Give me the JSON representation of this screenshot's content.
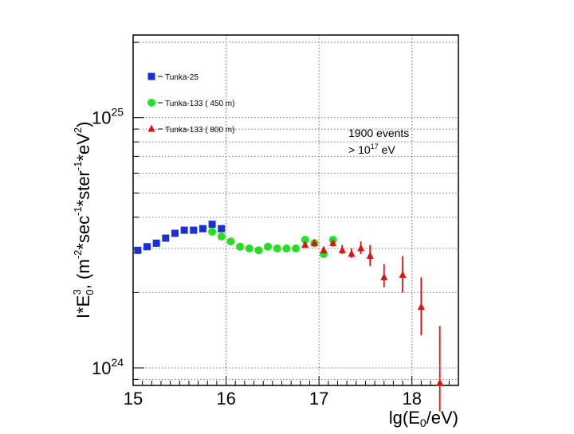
{
  "chart_data": {
    "type": "scatter",
    "title": "",
    "xlabel_parts": [
      "lg(E",
      "0",
      "/eV)"
    ],
    "ylabel_parts": [
      "I*E",
      "0",
      "3",
      ", (m",
      "-2",
      "*sec",
      "-1",
      "*ster",
      "-1",
      "*eV",
      "2",
      ")"
    ],
    "xscale": "linear",
    "yscale": "log",
    "xlim": [
      15.0,
      18.5
    ],
    "ylim_log10": [
      23.93,
      25.33
    ],
    "grid": true,
    "x_ticks": [
      {
        "value": 15,
        "label": "15"
      },
      {
        "value": 16,
        "label": "16"
      },
      {
        "value": 17,
        "label": "17"
      },
      {
        "value": 18,
        "label": "18"
      }
    ],
    "y_ticks": [
      {
        "log_value": 25,
        "base": "10",
        "exp": "25"
      },
      {
        "log_value": 24,
        "base": "10",
        "exp": "24"
      }
    ],
    "annotation": {
      "line1": "1900 events",
      "line2_parts": [
        "> 10",
        "17",
        " eV"
      ]
    },
    "legend_position": "top-left",
    "series": [
      {
        "name": "Tunka-25",
        "marker": "square",
        "color": "#1a2fd6",
        "points": [
          {
            "x": 15.05,
            "y": 2.95e+24
          },
          {
            "x": 15.15,
            "y": 3.05e+24
          },
          {
            "x": 15.25,
            "y": 3.15e+24
          },
          {
            "x": 15.35,
            "y": 3.3e+24
          },
          {
            "x": 15.45,
            "y": 3.45e+24
          },
          {
            "x": 15.55,
            "y": 3.55e+24
          },
          {
            "x": 15.65,
            "y": 3.55e+24
          },
          {
            "x": 15.75,
            "y": 3.6e+24
          },
          {
            "x": 15.85,
            "y": 3.75e+24
          },
          {
            "x": 15.95,
            "y": 3.6e+24
          }
        ]
      },
      {
        "name": "Tunka-133 ( 450 m)",
        "marker": "circle",
        "color": "#22e022",
        "points": [
          {
            "x": 15.85,
            "y": 3.5e+24
          },
          {
            "x": 15.95,
            "y": 3.35e+24
          },
          {
            "x": 16.05,
            "y": 3.2e+24
          },
          {
            "x": 16.15,
            "y": 3.05e+24
          },
          {
            "x": 16.25,
            "y": 3e+24
          },
          {
            "x": 16.35,
            "y": 2.95e+24
          },
          {
            "x": 16.45,
            "y": 3.05e+24
          },
          {
            "x": 16.55,
            "y": 3e+24
          },
          {
            "x": 16.65,
            "y": 3e+24
          },
          {
            "x": 16.75,
            "y": 3e+24
          },
          {
            "x": 16.85,
            "y": 3.25e+24
          },
          {
            "x": 16.95,
            "y": 3.15e+24
          },
          {
            "x": 17.05,
            "y": 2.85e+24
          },
          {
            "x": 17.15,
            "y": 3.25e+24
          }
        ]
      },
      {
        "name": "Tunka-133 ( 800 m)",
        "marker": "triangle",
        "color": "#dd1111",
        "points": [
          {
            "x": 16.85,
            "y": 3.1e+24,
            "err_lo": 5e+22,
            "err_hi": 5e+22
          },
          {
            "x": 16.95,
            "y": 3.15e+24,
            "err_lo": 5e+22,
            "err_hi": 5e+22
          },
          {
            "x": 17.05,
            "y": 2.95e+24,
            "err_lo": 1e+23,
            "err_hi": 1e+23
          },
          {
            "x": 17.15,
            "y": 3.15e+24,
            "err_lo": 1e+23,
            "err_hi": 1e+23
          },
          {
            "x": 17.25,
            "y": 2.95e+24,
            "err_lo": 1e+23,
            "err_hi": 1.5e+23
          },
          {
            "x": 17.35,
            "y": 2.85e+24,
            "err_lo": 1e+23,
            "err_hi": 1.5e+23
          },
          {
            "x": 17.45,
            "y": 3e+24,
            "err_lo": 1.5e+23,
            "err_hi": 2e+23
          },
          {
            "x": 17.55,
            "y": 2.8e+24,
            "err_lo": 2.5e+23,
            "err_hi": 3e+23
          },
          {
            "x": 17.7,
            "y": 2.3e+24,
            "err_lo": 2e+23,
            "err_hi": 3e+23
          },
          {
            "x": 17.9,
            "y": 2.35e+24,
            "err_lo": 3.5e+23,
            "err_hi": 4.5e+23
          },
          {
            "x": 18.1,
            "y": 1.75e+24,
            "err_lo": 4e+23,
            "err_hi": 5.5e+23
          },
          {
            "x": 18.3,
            "y": 8.7e+23,
            "err_lo": 2e+23,
            "err_hi": 6e+23
          }
        ]
      }
    ]
  }
}
